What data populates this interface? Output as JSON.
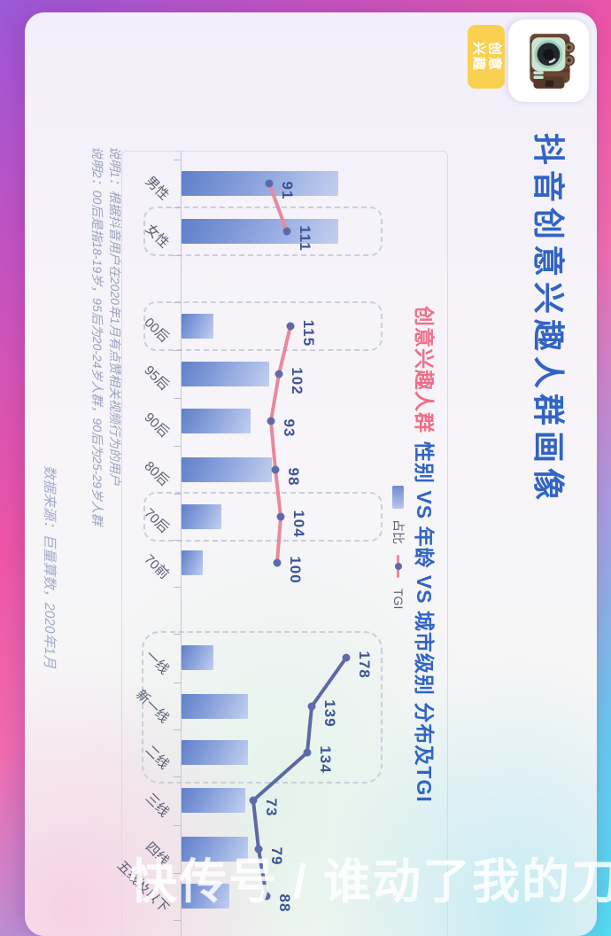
{
  "watermark": "快传号 / 谁动了我的刀",
  "header": {
    "camera_icon": "retro-camera-icon",
    "badge": {
      "line1": "创意",
      "line2": "兴趣"
    },
    "title": "抖音创意兴趣人群画像"
  },
  "subtitle": {
    "highlight": "创意兴趣人群",
    "rest": "性别 VS 年龄 VS 城市级别 分布及TGI"
  },
  "legend": {
    "bar_label": "占比",
    "line_label": "TGI"
  },
  "chart_data": {
    "type": "bar+line",
    "title": "创意兴趣人群 性别 VS 年龄 VS 城市级别 分布及TGI",
    "categories": [
      "男性",
      "女性",
      "00后",
      "95后",
      "90后",
      "80后",
      "70后",
      "70前",
      "一线",
      "新一线",
      "二线",
      "三线",
      "四线",
      "五线及以下"
    ],
    "groups": [
      {
        "name": "性别",
        "start": 0,
        "end": 1
      },
      {
        "name": "年龄",
        "start": 2,
        "end": 7
      },
      {
        "name": "城市级别",
        "start": 8,
        "end": 13
      }
    ],
    "series": [
      {
        "name": "占比",
        "type": "bar",
        "unit": "percent-estimated",
        "values": [
          59,
          59,
          12,
          33,
          26,
          34,
          15,
          8,
          12,
          25,
          25,
          24,
          25,
          18
        ]
      },
      {
        "name": "TGI",
        "type": "line",
        "values": [
          91,
          111,
          115,
          102,
          93,
          98,
          104,
          100,
          178,
          139,
          134,
          73,
          79,
          88
        ]
      }
    ],
    "highlighted_categories": [
      "女性",
      "00后",
      "70后"
    ],
    "highlighted_range": [
      "一线",
      "二线"
    ],
    "legend_entries": [
      "占比",
      "TGI"
    ],
    "grid": false,
    "orientation": "whole figure rotated 90deg clockwise in screenshot"
  },
  "notes": {
    "line1": "说明1：根据抖音用户在2020年1月有点赞相关视频行为的用户",
    "line2": "说明2：00后是指18-19岁，95后为20-24岁人群，90后为25-29岁人群"
  },
  "source": "数据来源：巨量算数，2020年1月",
  "colors": {
    "title_blue": "#3164c4",
    "subtitle_pink": "#ee7088",
    "badge_yellow": "#f8d150",
    "bar_dark": "#6785cc",
    "bar_light": "#c2cfef",
    "tgi_line_pink": "#e9899a",
    "tgi_line_blue": "#5d69a5",
    "tgi_dot": "#5f6aab",
    "value_label": "#3d5496",
    "border_gradient": [
      "#9a58d8",
      "#ee55a5",
      "#52dbf0"
    ]
  }
}
